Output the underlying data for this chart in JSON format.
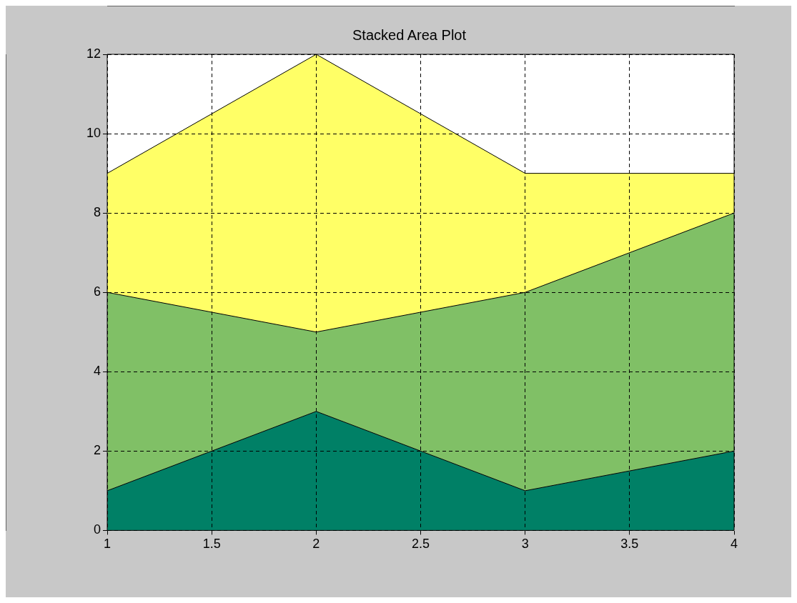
{
  "chart_data": {
    "type": "area",
    "title": "Stacked Area Plot",
    "x": [
      1,
      2,
      3,
      4
    ],
    "stacked": true,
    "series": [
      {
        "color": "#008066",
        "values": [
          1,
          3,
          1,
          2
        ]
      },
      {
        "color": "#80c066",
        "values": [
          5,
          2,
          5,
          6
        ]
      },
      {
        "color": "#ffff66",
        "values": [
          3,
          7,
          3,
          1
        ]
      }
    ],
    "xlim": [
      1,
      4
    ],
    "ylim": [
      0,
      12
    ],
    "xticks": [
      1,
      1.5,
      2,
      2.5,
      3,
      3.5,
      4
    ],
    "yticks": [
      0,
      2,
      4,
      6,
      8,
      10,
      12
    ],
    "grid": true
  }
}
